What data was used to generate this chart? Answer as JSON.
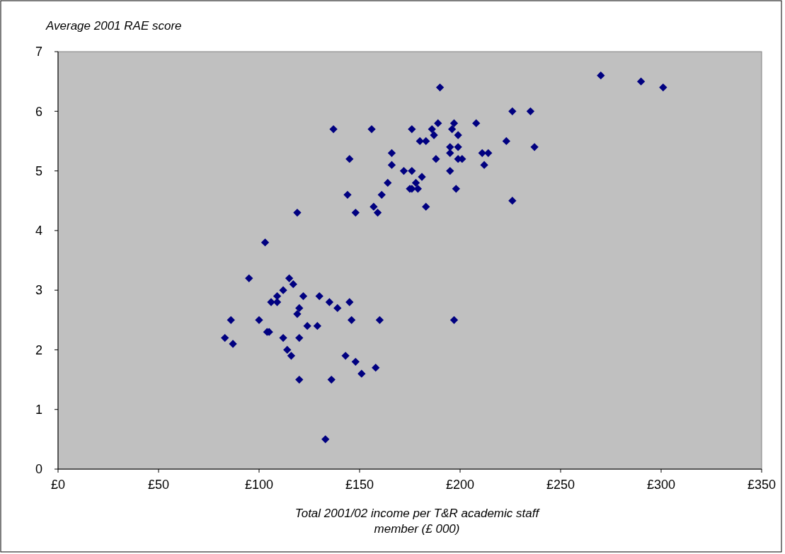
{
  "chart_data": {
    "type": "scatter",
    "ylabel": "Average 2001 RAE score",
    "xlabel": "Total 2001/02 income per T&R academic staff member (£ 000)",
    "series": [
      {
        "color": "#000080",
        "x": [
          270,
          290,
          301,
          190,
          226,
          235,
          137,
          156,
          176,
          186,
          196,
          189,
          197,
          208,
          187,
          199,
          180,
          183,
          223,
          237,
          195,
          199,
          166,
          195,
          211,
          214,
          145,
          188,
          199,
          201,
          166,
          212,
          172,
          176,
          195,
          181,
          164,
          178,
          175,
          176,
          179,
          198,
          144,
          161,
          157,
          183,
          226,
          148,
          159,
          119,
          103,
          95,
          115,
          117,
          112,
          109,
          122,
          130,
          106,
          109,
          135,
          145,
          139,
          120,
          119,
          86,
          100,
          146,
          160,
          197,
          124,
          129,
          104,
          105,
          83,
          112,
          120,
          87,
          114,
          116,
          143,
          148,
          158,
          151,
          120,
          136,
          133
        ],
        "values": [
          6.6,
          6.5,
          6.4,
          6.4,
          6.0,
          6.0,
          5.7,
          5.7,
          5.7,
          5.7,
          5.7,
          5.8,
          5.8,
          5.8,
          5.6,
          5.6,
          5.5,
          5.5,
          5.5,
          5.4,
          5.4,
          5.4,
          5.3,
          5.3,
          5.3,
          5.3,
          5.2,
          5.2,
          5.2,
          5.2,
          5.1,
          5.1,
          5.0,
          5.0,
          5.0,
          4.9,
          4.8,
          4.8,
          4.7,
          4.7,
          4.7,
          4.7,
          4.6,
          4.6,
          4.4,
          4.4,
          4.5,
          4.3,
          4.3,
          4.3,
          3.8,
          3.2,
          3.2,
          3.1,
          3.0,
          2.9,
          2.9,
          2.9,
          2.8,
          2.8,
          2.8,
          2.8,
          2.7,
          2.7,
          2.6,
          2.5,
          2.5,
          2.5,
          2.5,
          2.5,
          2.4,
          2.4,
          2.3,
          2.3,
          2.2,
          2.2,
          2.2,
          2.1,
          2.0,
          1.9,
          1.9,
          1.8,
          1.7,
          1.6,
          1.5,
          1.5,
          0.5
        ]
      }
    ],
    "marker": "diamond",
    "xlim": [
      0,
      350
    ],
    "xticks": [
      {
        "value": 0,
        "label": "£0"
      },
      {
        "value": 50,
        "label": "£50"
      },
      {
        "value": 100,
        "label": "£100"
      },
      {
        "value": 150,
        "label": "£150"
      },
      {
        "value": 200,
        "label": "£200"
      },
      {
        "value": 250,
        "label": "£250"
      },
      {
        "value": 300,
        "label": "£300"
      },
      {
        "value": 350,
        "label": "£350"
      }
    ],
    "ylim": [
      0,
      7
    ],
    "yticks": [
      0,
      1,
      2,
      3,
      4,
      5,
      6,
      7
    ]
  }
}
